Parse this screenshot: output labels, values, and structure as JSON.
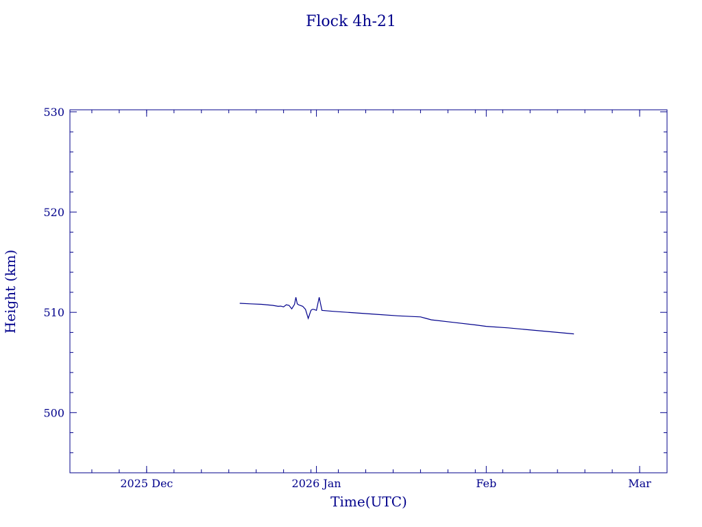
{
  "chart_data": {
    "type": "line",
    "title": "Flock 4h-21",
    "xlabel": "Time(UTC)",
    "ylabel": "Height (km)",
    "x_tick_labels": [
      "2025 Dec",
      "2026 Jan",
      "Feb",
      "Mar"
    ],
    "x_tick_dates": [
      "2025-12-01",
      "2026-01-01",
      "2026-02-01",
      "2026-03-01"
    ],
    "xlim": [
      "2025-11-17",
      "2026-03-06"
    ],
    "y_ticks": [
      500,
      510,
      520,
      530
    ],
    "ylim": [
      494,
      530.2
    ],
    "grid": false,
    "legend": "none",
    "color": "#00008b",
    "series": [
      {
        "x": [
          "2025-12-18",
          "2025-12-20",
          "2025-12-22",
          "2025-12-24",
          "2025-12-25",
          "2025-12-25T12:00",
          "2025-12-26",
          "2025-12-26T12:00",
          "2025-12-27",
          "2025-12-27T12:00",
          "2025-12-28",
          "2025-12-28T06:00",
          "2025-12-28T12:00",
          "2025-12-28T18:00",
          "2025-12-29",
          "2025-12-29T12:00",
          "2025-12-30",
          "2025-12-30T12:00",
          "2025-12-31",
          "2025-12-31T06:00",
          "2025-12-31T12:00",
          "2025-12-31T18:00",
          "2026-01-01",
          "2026-01-01T12:00",
          "2026-01-02",
          "2026-01-04",
          "2026-01-08",
          "2026-01-12",
          "2026-01-16",
          "2026-01-20",
          "2026-01-21",
          "2026-01-22",
          "2026-01-26",
          "2026-01-30",
          "2026-02-01",
          "2026-02-05",
          "2026-02-10",
          "2026-02-15",
          "2026-02-17"
        ],
        "y": [
          510.9,
          510.85,
          510.8,
          510.7,
          510.6,
          510.62,
          510.55,
          510.75,
          510.7,
          510.35,
          510.8,
          511.5,
          510.85,
          510.75,
          510.7,
          510.6,
          510.3,
          509.4,
          510.2,
          510.3,
          510.3,
          510.25,
          510.2,
          511.5,
          510.2,
          510.1,
          509.95,
          509.8,
          509.65,
          509.55,
          509.4,
          509.25,
          509.0,
          508.75,
          508.6,
          508.45,
          508.2,
          507.95,
          507.85
        ]
      }
    ]
  }
}
